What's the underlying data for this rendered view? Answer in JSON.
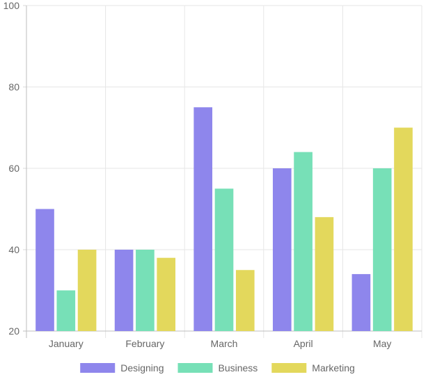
{
  "chart_data": {
    "type": "bar",
    "title": "",
    "xlabel": "",
    "ylabel": "",
    "categories": [
      "January",
      "February",
      "March",
      "April",
      "May"
    ],
    "series": [
      {
        "name": "Designing",
        "values": [
          50,
          40,
          75,
          60,
          34
        ],
        "color": "#8e86ec"
      },
      {
        "name": "Business",
        "values": [
          30,
          40,
          55,
          64,
          60
        ],
        "color": "#77e0b7"
      },
      {
        "name": "Marketing",
        "values": [
          40,
          38,
          35,
          48,
          70
        ],
        "color": "#e3d85c"
      }
    ],
    "ylim": [
      20,
      100
    ],
    "yticks": [
      20,
      40,
      60,
      80,
      100
    ],
    "grid": true,
    "legend_position": "bottom"
  }
}
